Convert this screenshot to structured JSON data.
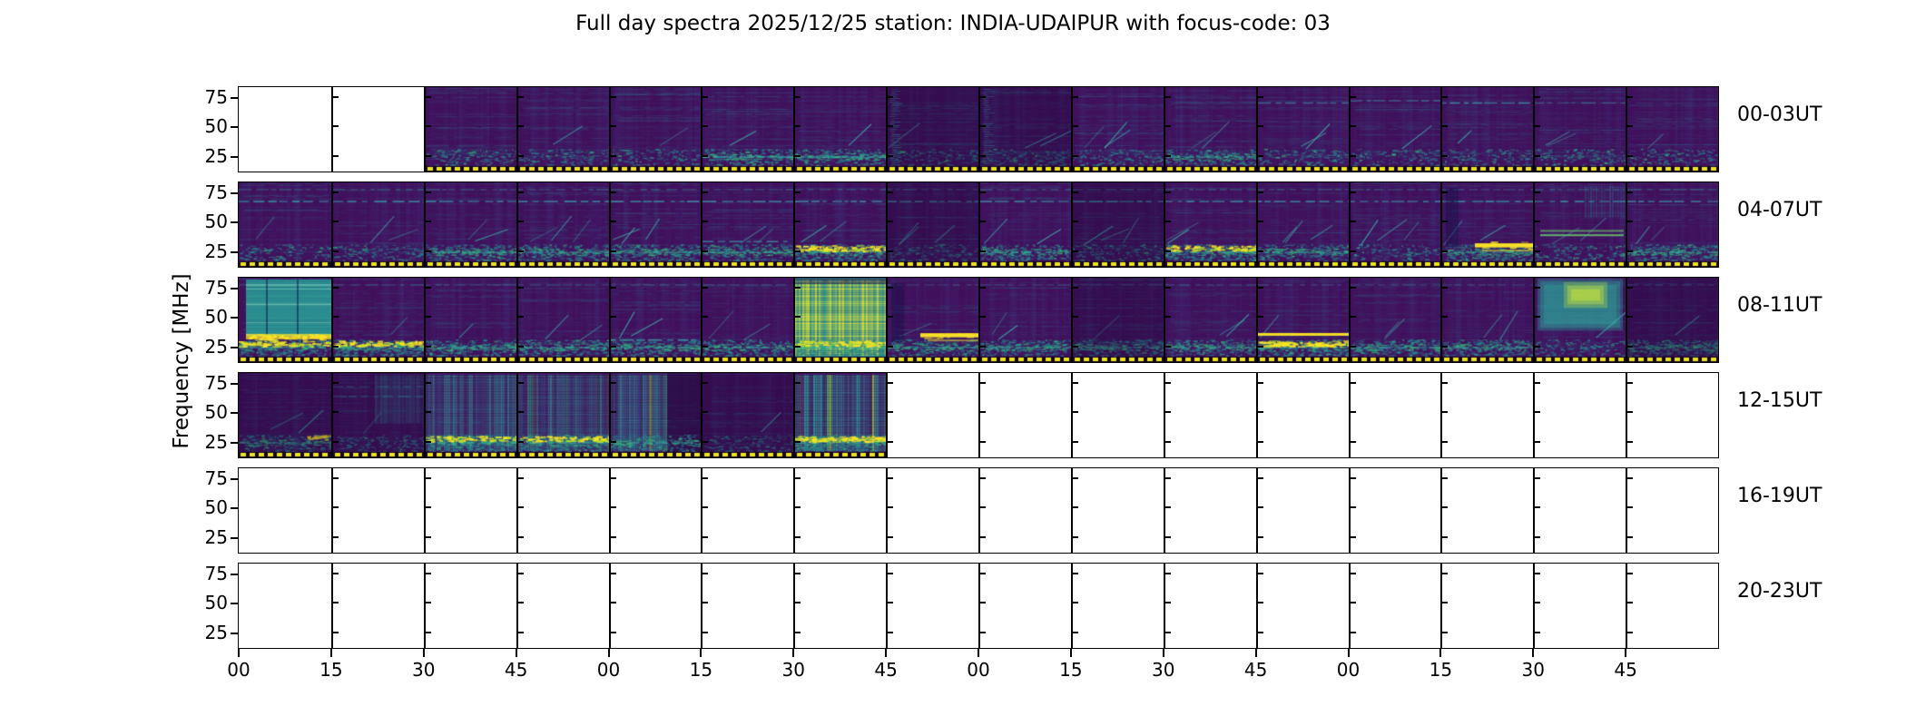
{
  "title": "Full day spectra 2025/12/25 station: INDIA-UDAIPUR with focus-code: 03",
  "station": "INDIA-UDAIPUR",
  "date": "2025/12/25",
  "focus_code": "03",
  "axes": {
    "ylabel": "Frequency [MHz]",
    "ytick_labels": [
      "75",
      "50",
      "25"
    ],
    "xtick_labels": [
      "00",
      "15",
      "30",
      "45",
      "00",
      "15",
      "30",
      "45",
      "00",
      "15",
      "30",
      "45",
      "00",
      "15",
      "30",
      "45"
    ]
  },
  "colors": {
    "background": "#ffffff",
    "frame": "#000000",
    "viridis_dark": "#440a5e",
    "viridis_blue": "#46327e",
    "viridis_teal": "#2a788e",
    "viridis_green": "#35b779",
    "viridis_yellow": "#fde725",
    "no_data": "#ffffff",
    "dotted_marker": "#ece41e"
  },
  "chart_data": {
    "type": "heatmap",
    "subtype": "radio-spectrogram-daily-overview",
    "colormap": "viridis",
    "title": "Full day spectra 2025/12/25 station: INDIA-UDAIPUR with focus-code: 03",
    "ylabel": "Frequency [MHz]",
    "yticks": [
      25,
      50,
      75
    ],
    "approx_ylim_mhz": [
      11,
      84
    ],
    "cells_per_row": 16,
    "minutes_per_cell": 15,
    "xtick_labels": [
      "00",
      "15",
      "30",
      "45",
      "00",
      "15",
      "30",
      "45",
      "00",
      "15",
      "30",
      "45",
      "00",
      "15",
      "30",
      "45"
    ],
    "annotations": [
      "no data 00:00-00:30",
      "no data 13:45-16:00",
      "no data 16:00-24:00",
      "broadband enhancement 08:00-08:15 (30-80 MHz) with bright band near 28 MHz",
      "strong saturated broadband burst 09:30-09:45",
      "bright narrow band near 30 MHz at 09:45-10:00 and 10:45-11:00",
      "smooth broadband enhancement 11:30-11:45 (35-80 MHz)",
      "vertical striped activity 12:30-13:45 with bright 20-27 MHz bands",
      "persistent interference/activity band near 20-30 MHz in all data rows",
      "yellow dotted marker line along bottom of every recorded segment"
    ],
    "rows": [
      {
        "label": "00-03UT",
        "cells": [
          {
            "data": false
          },
          {
            "data": false
          },
          {
            "data": true,
            "low": 1,
            "diag": 0
          },
          {
            "data": true,
            "low": 1,
            "diag": 1
          },
          {
            "data": true,
            "low": 1,
            "diag": 1
          },
          {
            "data": true,
            "low": 2,
            "diag": 1,
            "hl": [
              [
                20,
                0.8
              ]
            ]
          },
          {
            "data": true,
            "low": 2,
            "diag": 1,
            "hl": [
              [
                20,
                0.5
              ]
            ]
          },
          {
            "data": true,
            "low": 1,
            "diag": 1,
            "dark": true,
            "feat": "leftcol"
          },
          {
            "data": true,
            "low": 1,
            "diag": 2,
            "dark": true,
            "feat": "leftcol"
          },
          {
            "data": true,
            "low": 1,
            "diag": 3
          },
          {
            "data": true,
            "low": 2,
            "diag": 2
          },
          {
            "data": true,
            "low": 1,
            "diag": 2,
            "hl": [
              [
                70,
                0.5
              ]
            ]
          },
          {
            "data": true,
            "low": 1,
            "diag": 1,
            "hl": [
              [
                72,
                0.5
              ]
            ]
          },
          {
            "data": true,
            "low": 1,
            "diag": 1,
            "hl": [
              [
                70,
                0.7
              ]
            ]
          },
          {
            "data": true,
            "low": 1,
            "diag": 2,
            "hl": [
              [
                70,
                0.4
              ]
            ]
          },
          {
            "data": true,
            "low": 1,
            "diag": 1
          }
        ]
      },
      {
        "label": "04-07UT",
        "cells": [
          {
            "data": true,
            "low": 1,
            "diag": 1
          },
          {
            "data": true,
            "low": 1,
            "diag": 2
          },
          {
            "data": true,
            "low": 2,
            "diag": 2
          },
          {
            "data": true,
            "low": 2,
            "diag": 3
          },
          {
            "data": true,
            "low": 2,
            "diag": 3
          },
          {
            "data": true,
            "low": 2,
            "diag": 2,
            "hl": [
              [
                30,
                0.6
              ]
            ]
          },
          {
            "data": true,
            "low": 3,
            "diag": 2
          },
          {
            "data": true,
            "low": 1,
            "diag": 3,
            "dark": true
          },
          {
            "data": true,
            "low": 2,
            "diag": 2
          },
          {
            "data": true,
            "low": 1,
            "diag": 3,
            "dark": true
          },
          {
            "data": true,
            "low": 3,
            "diag": 2
          },
          {
            "data": true,
            "low": 2,
            "diag": 3
          },
          {
            "data": true,
            "low": 1,
            "diag": 3
          },
          {
            "data": true,
            "low": 2,
            "diag": 2,
            "feat": "ylineR",
            "ffreq": 26
          },
          {
            "data": true,
            "low": 1,
            "diag": 2,
            "feat": "glines"
          },
          {
            "data": true,
            "low": 2,
            "diag": 2
          }
        ]
      },
      {
        "label": "08-11UT",
        "cells": [
          {
            "data": true,
            "low": 3,
            "diag": 0,
            "feat": "tealblock"
          },
          {
            "data": true,
            "low": 3,
            "diag": 1
          },
          {
            "data": true,
            "low": 2,
            "diag": 1
          },
          {
            "data": true,
            "low": 2,
            "diag": 2
          },
          {
            "data": true,
            "low": 2,
            "diag": 2,
            "hl": [
              [
                27,
                0.8
              ]
            ]
          },
          {
            "data": true,
            "low": 2,
            "diag": 2
          },
          {
            "data": true,
            "low": 3,
            "diag": 0,
            "feat": "bigburst"
          },
          {
            "data": true,
            "low": 2,
            "diag": 1,
            "feat": "ylineR",
            "ffreq": 31
          },
          {
            "data": true,
            "low": 2,
            "diag": 2
          },
          {
            "data": true,
            "low": 2,
            "diag": 1,
            "dark": true
          },
          {
            "data": true,
            "low": 2,
            "diag": 2
          },
          {
            "data": true,
            "low": 3,
            "diag": 1,
            "feat": "yline",
            "ffreq": 32
          },
          {
            "data": true,
            "low": 2,
            "diag": 2
          },
          {
            "data": true,
            "low": 2,
            "diag": 2
          },
          {
            "data": true,
            "low": 1,
            "diag": 1,
            "feat": "tealpatch"
          },
          {
            "data": true,
            "low": 2,
            "diag": 1,
            "dark": true
          }
        ]
      },
      {
        "label": "12-15UT",
        "cells": [
          {
            "data": true,
            "low": 2,
            "diag": 2,
            "dark": true,
            "feat": "ypatchR"
          },
          {
            "data": true,
            "low": 1,
            "diag": 1,
            "dark": true,
            "feat": "washR"
          },
          {
            "data": true,
            "low": 3,
            "diag": 0,
            "feat": "vstr"
          },
          {
            "data": true,
            "low": 3,
            "diag": 0,
            "feat": "vstr"
          },
          {
            "data": true,
            "low": 2,
            "diag": 0,
            "feat": "vstrL"
          },
          {
            "data": true,
            "low": 1,
            "diag": 1,
            "dark": true
          },
          {
            "data": true,
            "low": 3,
            "diag": 0,
            "feat": "vstrB"
          },
          {
            "data": false
          },
          {
            "data": false
          },
          {
            "data": false
          },
          {
            "data": false
          },
          {
            "data": false
          },
          {
            "data": false
          },
          {
            "data": false
          },
          {
            "data": false
          },
          {
            "data": false
          }
        ]
      },
      {
        "label": "16-19UT",
        "cells": [
          {
            "data": false
          },
          {
            "data": false
          },
          {
            "data": false
          },
          {
            "data": false
          },
          {
            "data": false
          },
          {
            "data": false
          },
          {
            "data": false
          },
          {
            "data": false
          },
          {
            "data": false
          },
          {
            "data": false
          },
          {
            "data": false
          },
          {
            "data": false
          },
          {
            "data": false
          },
          {
            "data": false
          },
          {
            "data": false
          },
          {
            "data": false
          }
        ]
      },
      {
        "label": "20-23UT",
        "cells": [
          {
            "data": false
          },
          {
            "data": false
          },
          {
            "data": false
          },
          {
            "data": false
          },
          {
            "data": false
          },
          {
            "data": false
          },
          {
            "data": false
          },
          {
            "data": false
          },
          {
            "data": false
          },
          {
            "data": false
          },
          {
            "data": false
          },
          {
            "data": false
          },
          {
            "data": false
          },
          {
            "data": false
          },
          {
            "data": false
          },
          {
            "data": false
          }
        ]
      }
    ]
  }
}
